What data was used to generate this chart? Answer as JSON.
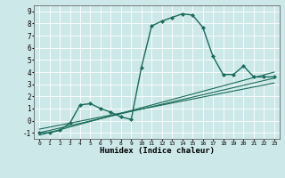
{
  "title": "",
  "xlabel": "Humidex (Indice chaleur)",
  "xlim": [
    -0.5,
    23.5
  ],
  "ylim": [
    -1.5,
    9.5
  ],
  "xticks": [
    0,
    1,
    2,
    3,
    4,
    5,
    6,
    7,
    8,
    9,
    10,
    11,
    12,
    13,
    14,
    15,
    16,
    17,
    18,
    19,
    20,
    21,
    22,
    23
  ],
  "yticks": [
    -1,
    0,
    1,
    2,
    3,
    4,
    5,
    6,
    7,
    8,
    9
  ],
  "bg_color": "#cce8e8",
  "line_color": "#1a6b5a",
  "grid_color": "#ffffff",
  "series": [
    {
      "x": [
        0,
        1,
        2,
        3,
        4,
        5,
        6,
        7,
        8,
        9,
        10,
        11,
        12,
        13,
        14,
        15,
        16,
        17,
        18,
        19,
        20,
        21,
        22,
        23
      ],
      "y": [
        -1,
        -1,
        -0.8,
        -0.2,
        1.3,
        1.4,
        1.0,
        0.7,
        0.3,
        0.1,
        4.4,
        7.8,
        8.2,
        8.5,
        8.8,
        8.7,
        7.7,
        5.3,
        3.8,
        3.8,
        4.5,
        3.6,
        3.6,
        3.6
      ],
      "marker": "D",
      "markersize": 2.0,
      "linewidth": 1.0
    },
    {
      "x": [
        0,
        23
      ],
      "y": [
        -1.0,
        3.5
      ],
      "marker": null,
      "linewidth": 0.8
    },
    {
      "x": [
        0,
        23
      ],
      "y": [
        -0.7,
        3.1
      ],
      "marker": null,
      "linewidth": 0.8
    },
    {
      "x": [
        0,
        23
      ],
      "y": [
        -1.2,
        4.0
      ],
      "marker": null,
      "linewidth": 0.8
    }
  ]
}
